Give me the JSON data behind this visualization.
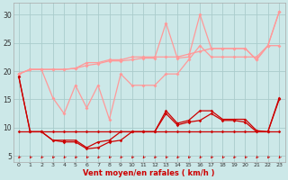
{
  "x": [
    0,
    1,
    2,
    3,
    4,
    5,
    6,
    7,
    8,
    9,
    10,
    11,
    12,
    13,
    14,
    15,
    16,
    17,
    18,
    19,
    20,
    21,
    22,
    23
  ],
  "line_flat": [
    9.3,
    9.3,
    9.3,
    9.3,
    9.3,
    9.3,
    9.3,
    9.3,
    9.3,
    9.3,
    9.3,
    9.3,
    9.3,
    9.3,
    9.3,
    9.3,
    9.3,
    9.3,
    9.3,
    9.3,
    9.3,
    9.3,
    9.3,
    9.3
  ],
  "line_dark1": [
    19.0,
    9.3,
    9.3,
    7.8,
    7.8,
    7.8,
    6.5,
    7.5,
    7.8,
    9.3,
    9.3,
    9.3,
    9.3,
    13.0,
    10.8,
    11.3,
    13.0,
    13.0,
    11.5,
    11.5,
    11.5,
    9.5,
    9.3,
    15.3
  ],
  "line_dark2": [
    19.0,
    9.3,
    9.3,
    7.8,
    7.5,
    7.5,
    6.3,
    6.5,
    7.5,
    7.8,
    9.3,
    9.3,
    9.3,
    12.5,
    10.5,
    11.0,
    11.3,
    12.5,
    11.3,
    11.3,
    11.0,
    9.3,
    9.3,
    15.0
  ],
  "line_light1": [
    19.5,
    20.3,
    20.3,
    15.3,
    12.5,
    17.5,
    13.5,
    17.5,
    11.5,
    19.5,
    17.5,
    17.5,
    17.5,
    19.5,
    19.5,
    22.0,
    24.5,
    22.5,
    22.5,
    22.5,
    22.5,
    22.5,
    24.5,
    24.5
  ],
  "line_light2": [
    19.5,
    20.3,
    20.3,
    20.3,
    20.3,
    20.5,
    21.5,
    21.5,
    22.0,
    22.0,
    22.5,
    22.5,
    22.5,
    22.5,
    22.5,
    23.0,
    23.5,
    24.0,
    24.0,
    24.0,
    24.0,
    22.0,
    24.5,
    30.5
  ],
  "line_light3": [
    19.5,
    20.3,
    20.3,
    20.3,
    20.3,
    20.5,
    21.0,
    21.3,
    21.8,
    21.8,
    22.0,
    22.3,
    22.3,
    28.5,
    22.3,
    22.5,
    30.0,
    24.0,
    24.0,
    24.0,
    24.0,
    22.0,
    24.5,
    30.5
  ],
  "bg_color": "#cce8e8",
  "grid_color": "#aacccc",
  "dark_color": "#cc0000",
  "light_color": "#ff9999",
  "xlabel": "Vent moyen/en rafales ( km/h )",
  "ylabel_ticks": [
    5,
    10,
    15,
    20,
    25,
    30
  ],
  "xlim": [
    -0.5,
    23.5
  ],
  "ylim": [
    4.0,
    32.0
  ]
}
